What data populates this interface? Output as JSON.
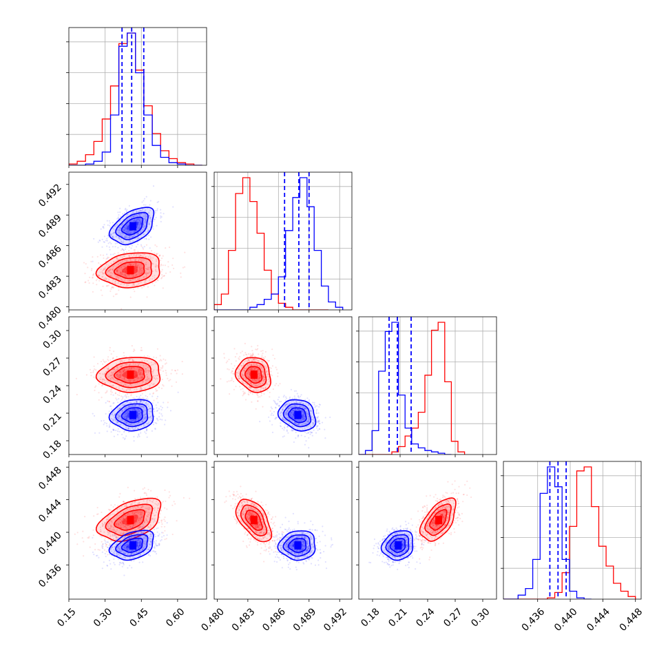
{
  "chart_data": {
    "type": "corner",
    "colors": {
      "first": "#ff0000",
      "second": "#0000ff",
      "grid": "#b0b0b0",
      "axes": "#000000"
    },
    "parameters": [
      {
        "range": [
          0.15,
          0.72
        ],
        "ticks": [
          "0.15",
          "0.30",
          "0.45",
          "0.60"
        ],
        "tick_values": [
          0.15,
          0.3,
          0.45,
          0.6
        ]
      },
      {
        "range": [
          0.4797,
          0.4932
        ],
        "ticks": [
          "0.480",
          "0.483",
          "0.486",
          "0.489",
          "0.492"
        ],
        "tick_values": [
          0.48,
          0.483,
          0.486,
          0.489,
          0.492
        ]
      },
      {
        "range": [
          0.165,
          0.315
        ],
        "ticks": [
          "0.18",
          "0.21",
          "0.24",
          "0.27",
          "0.30"
        ],
        "tick_values": [
          0.18,
          0.21,
          0.24,
          0.27,
          0.3
        ]
      },
      {
        "range": [
          0.4318,
          0.4487
        ],
        "ticks": [
          "0.436",
          "0.440",
          "0.444",
          "0.448"
        ],
        "tick_values": [
          0.436,
          0.44,
          0.444,
          0.448
        ]
      }
    ],
    "blue_quantiles": [
      [
        0.37,
        0.41,
        0.46
      ],
      [
        0.4866,
        0.488,
        0.489
      ],
      [
        0.198,
        0.207,
        0.222
      ],
      [
        0.4375,
        0.4385,
        0.4395
      ]
    ],
    "series": [
      {
        "key": "first",
        "mean": [
          0.405,
          0.4836,
          0.252,
          0.4415
        ],
        "sd": [
          0.065,
          0.00085,
          0.0095,
          0.0013
        ],
        "corr": {
          "0-1": 0.15,
          "0-2": 0.05,
          "0-3": 0.45,
          "1-2": -0.15,
          "1-3": -0.55,
          "2-3": 0.55
        },
        "hist": [
          {
            "edges": [
              0.15,
              0.1845,
              0.219,
              0.2535,
              0.288,
              0.3225,
              0.357,
              0.3915,
              0.426,
              0.4605,
              0.495,
              0.5295,
              0.564,
              0.5985,
              0.633,
              0.6675,
              0.702
            ],
            "counts": [
              0.01,
              0.03,
              0.08,
              0.18,
              0.35,
              0.6,
              0.92,
              1.0,
              0.72,
              0.45,
              0.24,
              0.11,
              0.05,
              0.02,
              0.01,
              0.0
            ]
          },
          {
            "edges": [
              0.4797,
              0.4804,
              0.4811,
              0.4818,
              0.4825,
              0.4832,
              0.4839,
              0.4846,
              0.4853,
              0.486,
              0.4867,
              0.4874,
              0.4881,
              0.4888,
              0.4895,
              0.4902,
              0.4909
            ],
            "counts": [
              0.04,
              0.12,
              0.45,
              0.88,
              1.0,
              0.82,
              0.58,
              0.3,
              0.12,
              0.05,
              0.02,
              0.0,
              0.0,
              0.0,
              0.0,
              0.0
            ]
          },
          {
            "edges": [
              0.165,
              0.1722,
              0.1794,
              0.1866,
              0.1938,
              0.201,
              0.2082,
              0.2154,
              0.2226,
              0.2298,
              0.237,
              0.2442,
              0.2514,
              0.2586,
              0.2658,
              0.273,
              0.2802
            ],
            "counts": [
              0.0,
              0.0,
              0.0,
              0.0,
              0.0,
              0.02,
              0.06,
              0.14,
              0.2,
              0.32,
              0.6,
              0.94,
              1.0,
              0.55,
              0.1,
              0.02
            ]
          },
          {
            "edges": [
              0.4318,
              0.4327,
              0.4336,
              0.4345,
              0.4354,
              0.4363,
              0.4372,
              0.4381,
              0.439,
              0.4399,
              0.4408,
              0.4417,
              0.4426,
              0.4435,
              0.4444,
              0.4453,
              0.4462,
              0.4471,
              0.448
            ],
            "counts": [
              0.0,
              0.0,
              0.0,
              0.0,
              0.0,
              0.0,
              0.01,
              0.05,
              0.2,
              0.55,
              0.97,
              1.0,
              0.7,
              0.4,
              0.25,
              0.12,
              0.06,
              0.02
            ]
          }
        ]
      },
      {
        "key": "second",
        "mean": [
          0.415,
          0.4879,
          0.208,
          0.4384
        ],
        "sd": [
          0.045,
          0.0009,
          0.0085,
          0.0009
        ],
        "corr": {
          "0-1": 0.45,
          "0-2": 0.1,
          "0-3": 0.35,
          "1-2": -0.2,
          "1-3": 0.05,
          "2-3": 0.15
        },
        "hist": [
          {
            "edges": [
              0.15,
              0.1845,
              0.219,
              0.2535,
              0.288,
              0.3225,
              0.357,
              0.3915,
              0.426,
              0.4605,
              0.495,
              0.5295,
              0.564,
              0.5985,
              0.633,
              0.6675,
              0.702
            ],
            "counts": [
              0.0,
              0.0,
              0.01,
              0.03,
              0.1,
              0.38,
              0.9,
              1.0,
              0.7,
              0.38,
              0.15,
              0.06,
              0.02,
              0.01,
              0.0,
              0.0
            ]
          },
          {
            "edges": [
              0.4797,
              0.4804,
              0.4811,
              0.4818,
              0.4825,
              0.4832,
              0.4839,
              0.4846,
              0.4853,
              0.486,
              0.4867,
              0.4874,
              0.4881,
              0.4888,
              0.4895,
              0.4902,
              0.4909,
              0.4916,
              0.4923
            ],
            "counts": [
              0.0,
              0.0,
              0.0,
              0.0,
              0.0,
              0.02,
              0.04,
              0.08,
              0.12,
              0.25,
              0.6,
              0.85,
              1.0,
              0.78,
              0.45,
              0.18,
              0.06,
              0.02
            ]
          },
          {
            "edges": [
              0.165,
              0.1722,
              0.1794,
              0.1866,
              0.1938,
              0.201,
              0.2082,
              0.2154,
              0.2226,
              0.2298,
              0.237,
              0.2442,
              0.2514,
              0.2586,
              0.2658
            ],
            "counts": [
              0.0,
              0.03,
              0.18,
              0.63,
              0.93,
              1.0,
              0.45,
              0.2,
              0.08,
              0.05,
              0.03,
              0.02,
              0.01,
              0.0
            ]
          },
          {
            "edges": [
              0.4318,
              0.4327,
              0.4336,
              0.4345,
              0.4354,
              0.4363,
              0.4372,
              0.4381,
              0.439,
              0.4399,
              0.4408,
              0.4417,
              0.4426
            ],
            "counts": [
              0.0,
              0.0,
              0.03,
              0.08,
              0.3,
              0.8,
              1.0,
              0.85,
              0.3,
              0.06,
              0.01,
              0.0
            ]
          }
        ]
      }
    ]
  }
}
